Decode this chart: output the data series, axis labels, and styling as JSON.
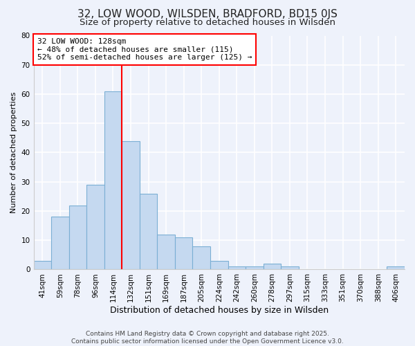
{
  "title": "32, LOW WOOD, WILSDEN, BRADFORD, BD15 0JS",
  "subtitle": "Size of property relative to detached houses in Wilsden",
  "xlabel": "Distribution of detached houses by size in Wilsden",
  "ylabel": "Number of detached properties",
  "categories": [
    "41sqm",
    "59sqm",
    "78sqm",
    "96sqm",
    "114sqm",
    "132sqm",
    "151sqm",
    "169sqm",
    "187sqm",
    "205sqm",
    "224sqm",
    "242sqm",
    "260sqm",
    "278sqm",
    "297sqm",
    "315sqm",
    "333sqm",
    "351sqm",
    "370sqm",
    "388sqm",
    "406sqm"
  ],
  "values": [
    3,
    18,
    22,
    29,
    61,
    44,
    26,
    12,
    11,
    8,
    3,
    1,
    1,
    2,
    1,
    0,
    0,
    0,
    0,
    0,
    1
  ],
  "bar_color": "#c5d9f0",
  "bar_edge_color": "#7bafd4",
  "vline_index": 4,
  "vline_color": "red",
  "annotation_text": "32 LOW WOOD: 128sqm\n← 48% of detached houses are smaller (115)\n52% of semi-detached houses are larger (125) →",
  "annotation_box_color": "white",
  "annotation_box_edge": "red",
  "ylim": [
    0,
    80
  ],
  "yticks": [
    0,
    10,
    20,
    30,
    40,
    50,
    60,
    70,
    80
  ],
  "background_color": "#eef2fb",
  "grid_color": "#ffffff",
  "footer": "Contains HM Land Registry data © Crown copyright and database right 2025.\nContains public sector information licensed under the Open Government Licence v3.0.",
  "title_fontsize": 11,
  "subtitle_fontsize": 9.5,
  "xlabel_fontsize": 9,
  "ylabel_fontsize": 8,
  "tick_fontsize": 7.5,
  "annotation_fontsize": 8,
  "footer_fontsize": 6.5
}
